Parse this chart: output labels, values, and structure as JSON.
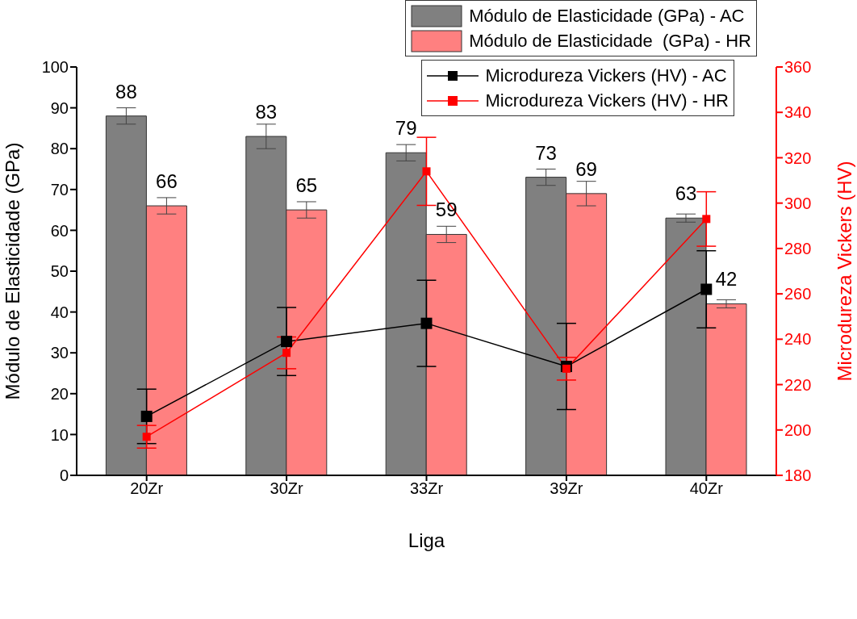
{
  "chart_data": {
    "type": "bar",
    "xlabel": "Liga",
    "ylabel": "Módulo de Elasticidade (GPa)",
    "y2label": "Microdureza Vickers (HV)",
    "categories": [
      "20Zr",
      "30Zr",
      "33Zr",
      "39Zr",
      "40Zr"
    ],
    "series": [
      {
        "name": "Módulo de Elasticidade (GPa) - AC",
        "type": "bar",
        "color": "#808080",
        "values": [
          88,
          83,
          79,
          73,
          63
        ],
        "errors": [
          2,
          3,
          2,
          2,
          1
        ],
        "value_labels": [
          "88",
          "83",
          "79",
          "73",
          "63"
        ]
      },
      {
        "name": "Módulo de Elasticidade  (GPa) - HR",
        "type": "bar",
        "color": "#ff8080",
        "values": [
          66,
          65,
          59,
          69,
          42
        ],
        "errors": [
          2,
          2,
          2,
          3,
          1
        ],
        "value_labels": [
          "66",
          "65",
          "59",
          "69",
          "42"
        ]
      },
      {
        "name": "Microdureza Vickers (HV) - AC",
        "type": "line",
        "axis": "y2",
        "color": "#000000",
        "values": [
          206,
          239,
          247,
          228,
          262
        ],
        "errors": [
          12,
          15,
          19,
          19,
          17
        ]
      },
      {
        "name": "Microdureza Vickers (HV) - HR",
        "type": "line",
        "axis": "y2",
        "color": "#ff0000",
        "values": [
          197,
          234,
          314,
          227,
          293
        ],
        "errors": [
          5,
          7,
          15,
          5,
          12
        ]
      }
    ],
    "ylim": [
      0,
      100
    ],
    "yticks": [
      0,
      10,
      20,
      30,
      40,
      50,
      60,
      70,
      80,
      90,
      100
    ],
    "y2lim": [
      180,
      360
    ],
    "y2ticks": [
      180,
      200,
      220,
      240,
      260,
      280,
      300,
      320,
      340,
      360
    ],
    "marker": "square",
    "grid": false,
    "legend": "top right"
  }
}
